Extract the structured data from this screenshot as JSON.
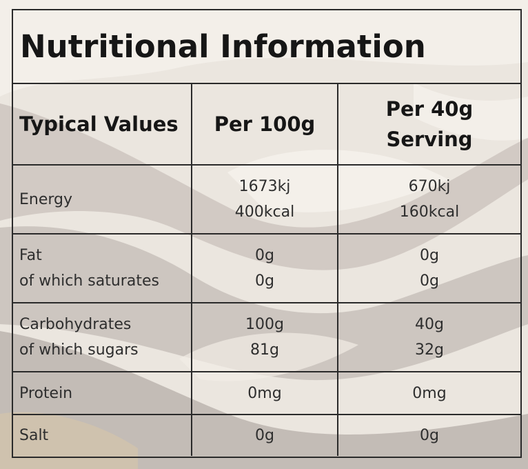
{
  "title": "Nutritional Information",
  "headers": {
    "col1": "Typical Values",
    "col2": "Per 100g",
    "col3_line1": "Per 40g",
    "col3_line2": "Serving"
  },
  "rows": [
    {
      "label_1": "Energy",
      "per100_1": "1673kj",
      "per100_2": "400kcal",
      "per40_1": "670kj",
      "per40_2": "160kcal"
    },
    {
      "label_1": "Fat",
      "label_2": "of which saturates",
      "per100_1": "0g",
      "per100_2": "0g",
      "per40_1": "0g",
      "per40_2": "0g"
    },
    {
      "label_1": "Carbohydrates",
      "label_2": "of which sugars",
      "per100_1": "100g",
      "per100_2": "81g",
      "per40_1": "40g",
      "per40_2": "32g"
    },
    {
      "label_1": "Protein",
      "per100_1": "0mg",
      "per40_1": "0mg"
    },
    {
      "label_1": "Salt",
      "per100_1": "0g",
      "per40_1": "0g"
    }
  ],
  "colors": {
    "background": "#e9e4dd",
    "border": "#2a2a2a",
    "text": "#2e2e2e"
  }
}
